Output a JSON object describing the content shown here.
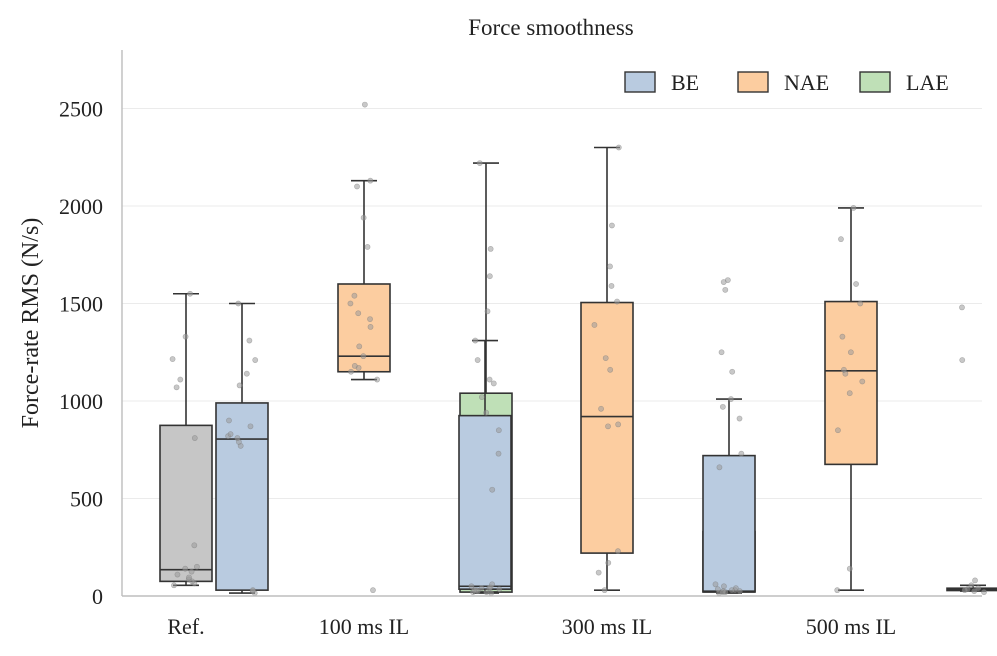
{
  "chart_data": {
    "type": "box",
    "title": "Force smoothness",
    "ylabel": "Force-rate RMS (N/s)",
    "xlabel": "",
    "ylim": [
      0,
      2800
    ],
    "yticks": [
      0,
      500,
      1000,
      1500,
      2000,
      2500
    ],
    "grid": "horizontal",
    "legend_position": "top-right",
    "groups": [
      "Ref.",
      "100 ms IL",
      "300 ms IL",
      "500 ms IL"
    ],
    "legend": [
      {
        "name": "BE",
        "color": "#b9cbe0"
      },
      {
        "name": "NAE",
        "color": "#fccda0"
      },
      {
        "name": "LAE",
        "color": "#bfe0b7"
      }
    ],
    "reference_color": "#c6c6c6",
    "boxes": [
      {
        "group": "Ref.",
        "series": "Ref.",
        "slot": 0,
        "whisker_low": 55,
        "q1": 75,
        "median": 135,
        "q3": 875,
        "whisker_high": 1550,
        "points": [
          55,
          65,
          75,
          85,
          95,
          110,
          125,
          140,
          150,
          260,
          810,
          1070,
          1110,
          1215,
          1330,
          1550
        ]
      },
      {
        "group": "100 ms IL",
        "series": "BE",
        "slot": -1,
        "whisker_low": 15,
        "q1": 30,
        "median": 805,
        "q3": 990,
        "whisker_high": 1500,
        "points": [
          15,
          25,
          30,
          770,
          790,
          810,
          820,
          830,
          870,
          900,
          1080,
          1140,
          1210,
          1310,
          1500
        ]
      },
      {
        "group": "100 ms IL",
        "series": "NAE",
        "slot": 0,
        "whisker_low": 1110,
        "q1": 1150,
        "median": 1230,
        "q3": 1600,
        "whisker_high": 2130,
        "points": [
          30,
          1110,
          1150,
          1170,
          1180,
          1230,
          1280,
          1380,
          1420,
          1450,
          1500,
          1540,
          1790,
          1940,
          2100,
          2130,
          2520
        ]
      },
      {
        "group": "100 ms IL",
        "series": "LAE",
        "slot": 1,
        "whisker_low": 15,
        "q1": 20,
        "median": 40,
        "q3": 1040,
        "whisker_high": 2220,
        "points": [
          15,
          20,
          25,
          30,
          35,
          40,
          45,
          1020,
          1110,
          1460,
          1640,
          1780,
          2220
        ]
      },
      {
        "group": "300 ms IL",
        "series": "BE",
        "slot": -1,
        "whisker_low": 20,
        "q1": 35,
        "median": 50,
        "q3": 925,
        "whisker_high": 1310,
        "points": [
          20,
          30,
          40,
          50,
          60,
          545,
          730,
          850,
          940,
          1090,
          1210,
          1310
        ]
      },
      {
        "group": "300 ms IL",
        "series": "NAE",
        "slot": 0,
        "whisker_low": 30,
        "q1": 220,
        "median": 920,
        "q3": 1505,
        "whisker_high": 2300,
        "points": [
          30,
          120,
          170,
          230,
          870,
          880,
          960,
          1160,
          1220,
          1390,
          1510,
          1590,
          1690,
          1900,
          2300
        ]
      },
      {
        "group": "300 ms IL",
        "series": "LAE",
        "slot": 1,
        "whisker_low": 20,
        "q1": 25,
        "median": 30,
        "q3": 330,
        "whisker_high": 330,
        "points": [
          20,
          25,
          30,
          40,
          50,
          60,
          1150,
          1250,
          1570,
          1610,
          1620
        ]
      },
      {
        "group": "500 ms IL",
        "series": "BE",
        "slot": -1,
        "whisker_low": 15,
        "q1": 20,
        "median": 25,
        "q3": 720,
        "whisker_high": 1010,
        "points": [
          15,
          20,
          25,
          30,
          35,
          660,
          730,
          910,
          970,
          1010
        ]
      },
      {
        "group": "500 ms IL",
        "series": "NAE",
        "slot": 0,
        "whisker_low": 30,
        "q1": 675,
        "median": 1155,
        "q3": 1510,
        "whisker_high": 1990,
        "points": [
          30,
          140,
          850,
          1040,
          1100,
          1140,
          1160,
          1250,
          1330,
          1500,
          1600,
          1830,
          1990
        ]
      },
      {
        "group": "500 ms IL",
        "series": "LAE",
        "slot": 1,
        "whisker_low": 25,
        "q1": 28,
        "median": 33,
        "q3": 40,
        "whisker_high": 55,
        "points": [
          20,
          25,
          30,
          35,
          40,
          55,
          80,
          1210,
          1480
        ]
      }
    ]
  }
}
